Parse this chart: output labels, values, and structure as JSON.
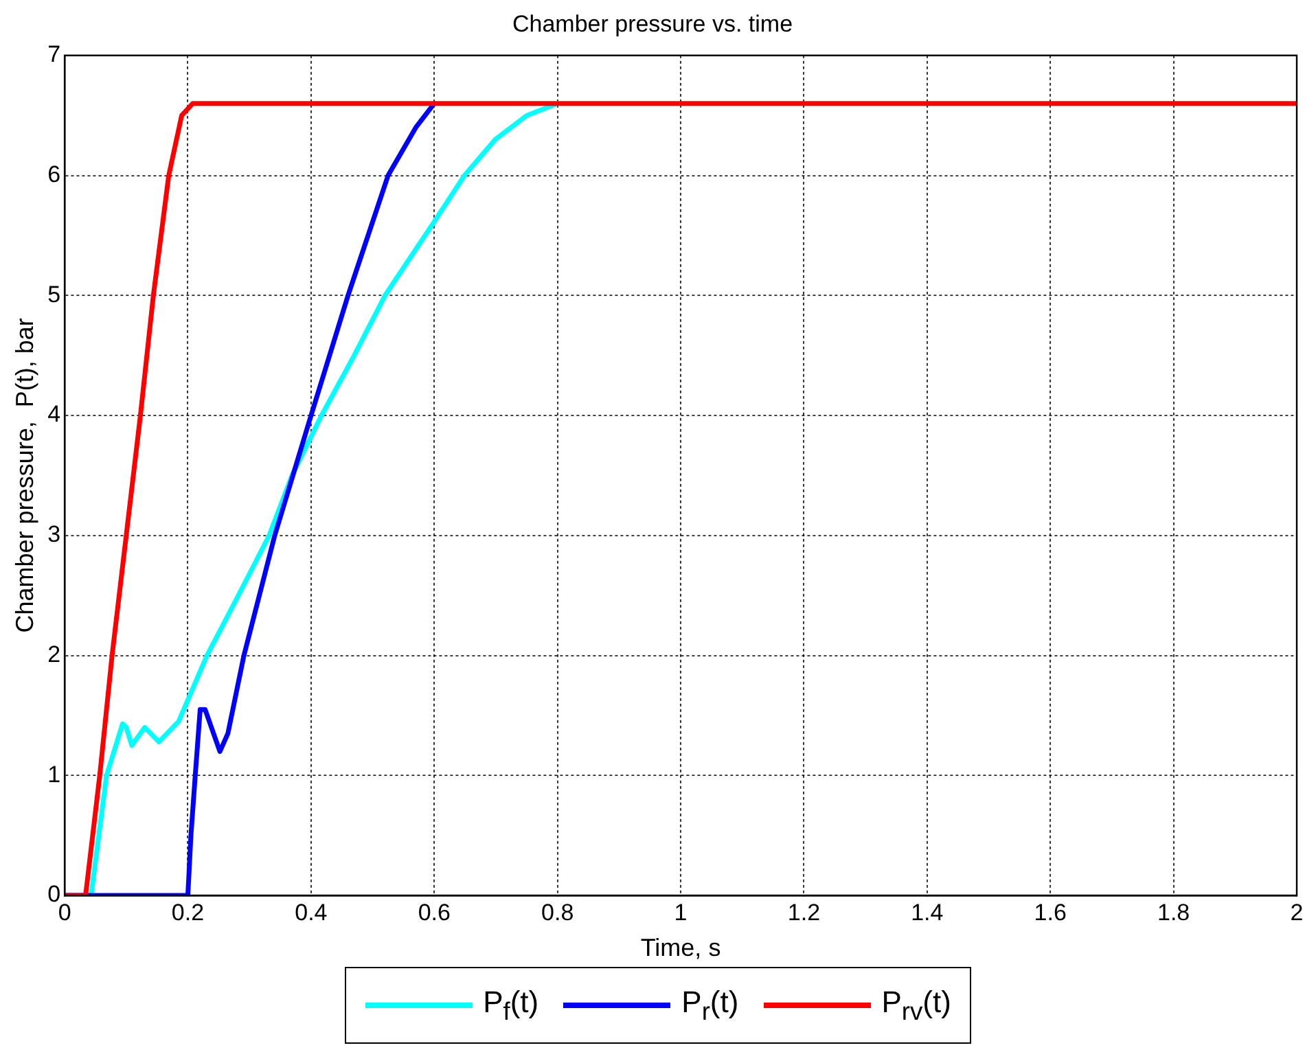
{
  "chart_data": {
    "type": "line",
    "title": "Chamber pressure vs. time",
    "xlabel": "Time, s",
    "ylabel": "Chamber pressure,  P(t), bar",
    "xlim": [
      0,
      2
    ],
    "xticks": [
      0,
      0.2,
      0.4,
      0.6,
      0.8,
      1,
      1.2,
      1.4,
      1.6,
      1.8,
      2
    ],
    "ylim": [
      0,
      7
    ],
    "yticks": [
      0,
      1,
      2,
      3,
      4,
      5,
      6,
      7
    ],
    "grid": true,
    "legend": "bottom",
    "marker": "none",
    "line_style": "solid",
    "series": [
      {
        "name": "P$_{f}$(t)",
        "color": "#00ffff",
        "x": [
          0,
          0.043,
          0.068,
          0.094,
          0.1,
          0.109,
          0.13,
          0.153,
          0.185,
          0.231,
          0.282,
          0.332,
          0.369,
          0.417,
          0.47,
          0.52,
          0.598,
          0.649,
          0.699,
          0.75,
          0.8
        ],
        "values": [
          0,
          0,
          1,
          1.43,
          1.4,
          1.25,
          1.4,
          1.28,
          1.45,
          2,
          2.5,
          3,
          3.5,
          4,
          4.5,
          5,
          5.6,
          6,
          6.3,
          6.5,
          6.6
        ]
      },
      {
        "name": "P$_{r}$(t)",
        "color": "#0000ff",
        "x": [
          0,
          0.2,
          0.205,
          0.212,
          0.22,
          0.228,
          0.252,
          0.265,
          0.291,
          0.341,
          0.4,
          0.46,
          0.525,
          0.57,
          0.6
        ],
        "values": [
          0,
          0,
          0.5,
          1,
          1.55,
          1.55,
          1.2,
          1.35,
          2,
          3,
          4,
          5,
          6,
          6.4,
          6.6
        ]
      },
      {
        "name": "P$_{rv}$(t)",
        "color": "#ff0000",
        "x": [
          0,
          0.034,
          0.057,
          0.077,
          0.1,
          0.123,
          0.144,
          0.169,
          0.19,
          0.208,
          2
        ],
        "values": [
          0,
          0,
          1,
          2,
          3,
          4,
          5,
          6,
          6.5,
          6.6,
          6.6
        ]
      }
    ]
  }
}
